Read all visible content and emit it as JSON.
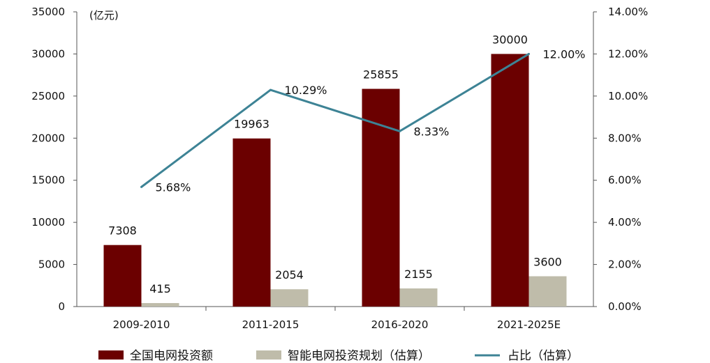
{
  "chart_data": {
    "type": "bar",
    "categories": [
      "2009-2010",
      "2011-2015",
      "2016-2020",
      "2021-2025E"
    ],
    "series": [
      {
        "name": "全国电网投资额",
        "type": "bar",
        "axis": "left",
        "color": "#6b0000",
        "values": [
          7308,
          19963,
          25855,
          30000
        ]
      },
      {
        "name": "智能电网投资规划（估算）",
        "type": "bar",
        "axis": "left",
        "color": "#bfbcaa",
        "values": [
          415,
          2054,
          2155,
          3600
        ]
      },
      {
        "name": "占比（估算）",
        "type": "line",
        "axis": "right",
        "color": "#3d8395",
        "values": [
          5.68,
          10.29,
          8.33,
          12.0
        ],
        "labels": [
          "5.68%",
          "10.29%",
          "8.33%",
          "12.00%"
        ]
      }
    ],
    "left_axis": {
      "unit_label": "(亿元)",
      "min": 0,
      "max": 35000,
      "ticks": [
        "0",
        "5000",
        "10000",
        "15000",
        "20000",
        "25000",
        "30000",
        "35000"
      ]
    },
    "right_axis": {
      "min": 0,
      "max": 14,
      "ticks": [
        "0.00%",
        "2.00%",
        "4.00%",
        "6.00%",
        "8.00%",
        "10.00%",
        "12.00%",
        "14.00%"
      ]
    },
    "grid": false,
    "legend_position": "bottom"
  }
}
